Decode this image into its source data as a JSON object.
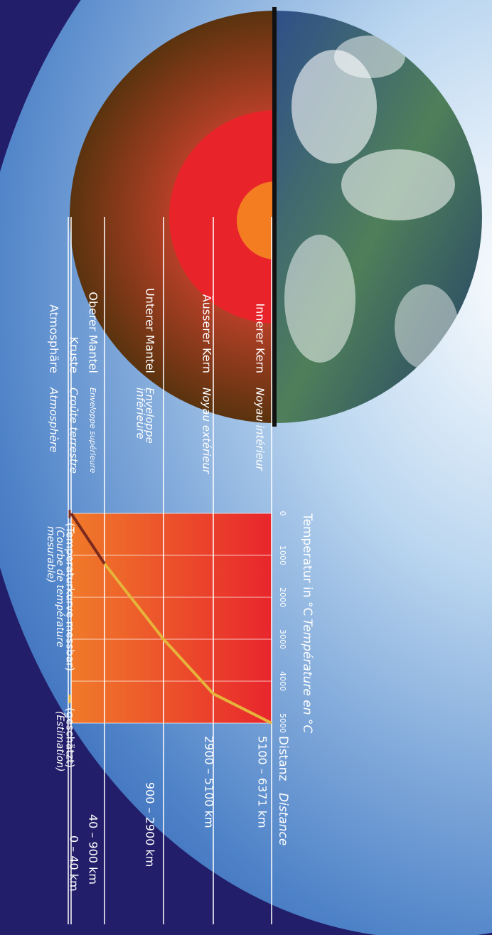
{
  "chart_data": {
    "type": "line",
    "title": "Temperatur in °C",
    "subtitle": "Température en °C",
    "categories": [
      null,
      null,
      null,
      null,
      null
    ],
    "series": [
      {
        "name": "(Temperaturkurve messbar)",
        "name_fr": [
          "(Courbe de température",
          "mesurable)"
        ],
        "color": "#7a2a1e",
        "values": [
          0,
          1200,
          null,
          null,
          null
        ]
      },
      {
        "name": "(geschätzt)",
        "name_fr": [
          "(Estimation)"
        ],
        "color": "#e6b43a",
        "values": [
          null,
          1200,
          3000,
          4300,
          5000
        ]
      }
    ],
    "ylim": [
      0,
      5000
    ],
    "yticks": [
      0,
      1000,
      2000,
      3000,
      4000,
      5000
    ],
    "grid": true
  },
  "distance_label": "Distanz",
  "distance_label_fr": "Distance",
  "layers": [
    {
      "name": "Innerer Kern",
      "name_fr": [
        "Noyau intérieur"
      ],
      "distance": "5100 – 6371 km"
    },
    {
      "name": "Äusserer Kern",
      "name_fr": [
        "Noyau extérieur"
      ],
      "distance": "2900 – 5100 km"
    },
    {
      "name": "Unterer Mantel",
      "name_fr": [
        "Enveloppe",
        "inférieure"
      ],
      "distance": "900 – 2900 km"
    },
    {
      "name": "Oberer Mantel",
      "name_fr": [
        "Enveloppe supérieure"
      ],
      "distance": "40 – 900 km"
    },
    {
      "name": "Kruste",
      "name_fr": [
        "Croûte terrestre"
      ],
      "distance": "0 – 40 km"
    },
    {
      "name": "Atmosphäre",
      "name_fr": [
        "Atmosphère"
      ]
    }
  ]
}
